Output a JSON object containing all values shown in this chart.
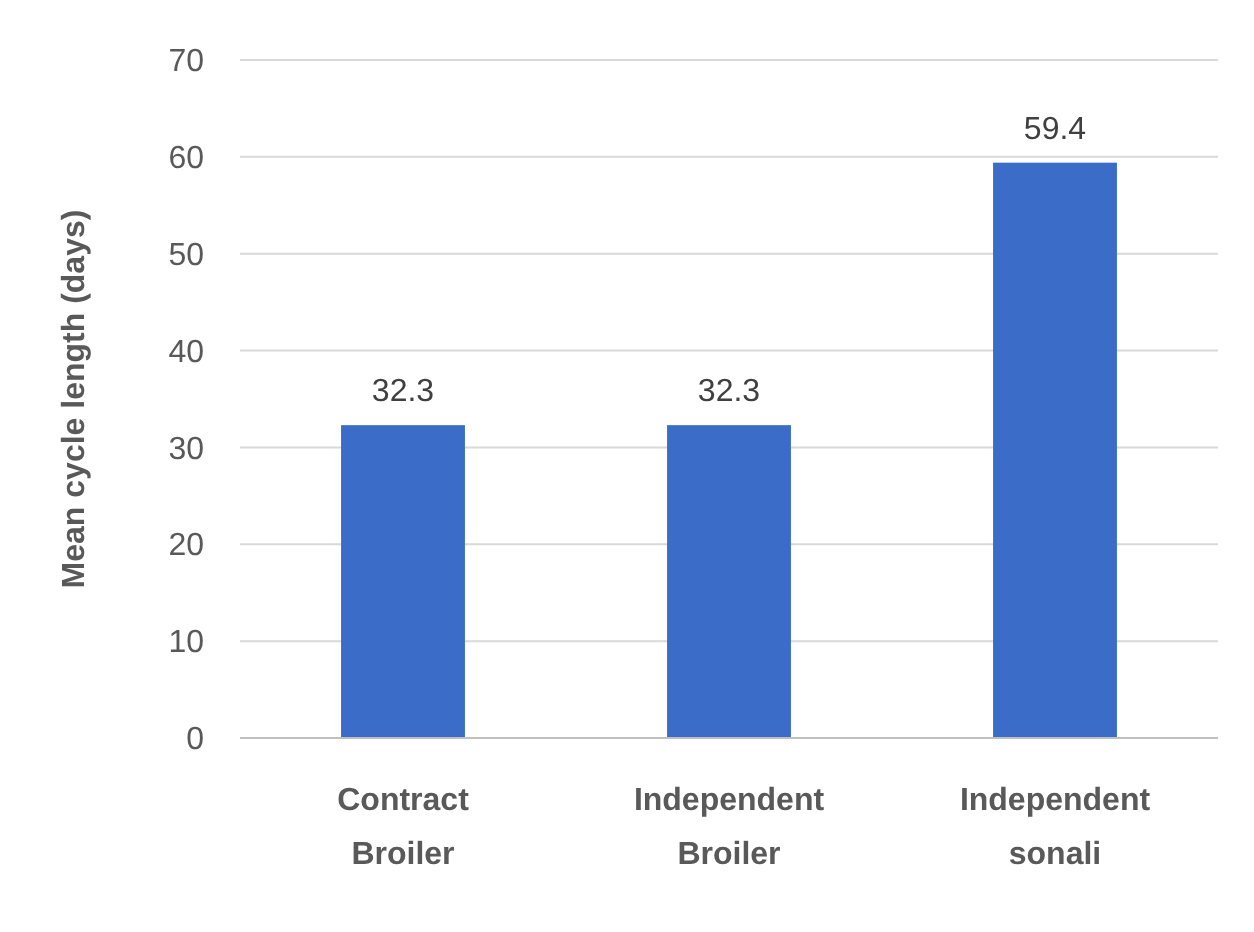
{
  "chart_data": {
    "type": "bar",
    "ylabel": "Mean cycle length (days)",
    "categories": [
      "Contract Broiler",
      "Independent Broiler",
      "Independent sonali"
    ],
    "values": [
      32.3,
      32.3,
      59.4
    ],
    "color": "#3b6cc8",
    "ylim": [
      0,
      70
    ],
    "yticks": [
      0,
      10,
      20,
      30,
      40,
      50,
      60,
      70
    ],
    "grid": "y",
    "data_labels": true
  }
}
